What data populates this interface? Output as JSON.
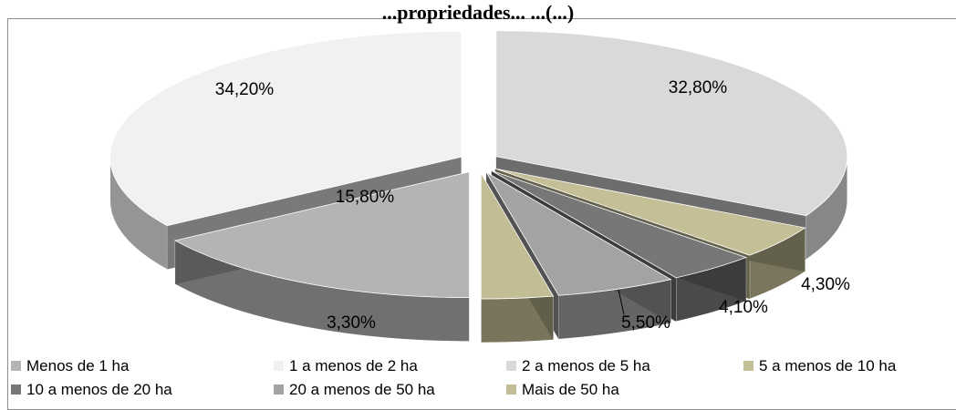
{
  "chart_data": {
    "type": "pie",
    "title": "",
    "slices": [
      {
        "label": "Menos de 1 ha",
        "value": 15.8,
        "display": "15,80%",
        "color": "#b4b4b4"
      },
      {
        "label": "1 a menos de 2 ha",
        "value": 34.2,
        "display": "34,20%",
        "color": "#f1f1f1"
      },
      {
        "label": "2 a menos de 5 ha",
        "value": 32.8,
        "display": "32,80%",
        "color": "#d9d9d9"
      },
      {
        "label": "5 a menos de 10 ha",
        "value": 4.3,
        "display": "4,30%",
        "color": "#c5bf98"
      },
      {
        "label": "10 a menos de 20 ha",
        "value": 4.1,
        "display": "4,10%",
        "color": "#777777"
      },
      {
        "label": "20 a menos de 50 ha",
        "value": 5.5,
        "display": "5,50%",
        "color": "#a3a3a3"
      },
      {
        "label": "Mais de 50 ha",
        "value": 3.3,
        "display": "3,30%",
        "color": "#c2bd94"
      }
    ],
    "legend_position": "bottom",
    "exploded": true,
    "style": "3d"
  },
  "header": {
    "visible_title": "...propriedades... ...(...)"
  }
}
